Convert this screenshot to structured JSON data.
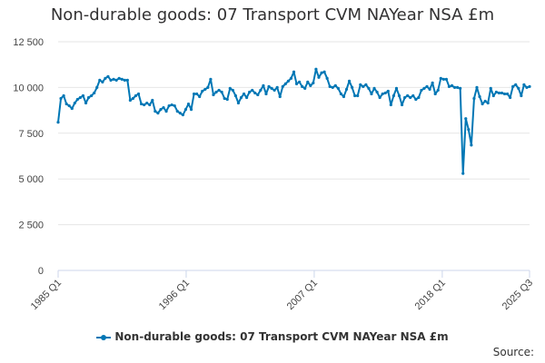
{
  "title": "Non-durable goods: 07 Transport CVM NAYear NSA £m",
  "source_label": "Source:",
  "colors": {
    "series": "#0077b5",
    "grid": "#e6e6e6",
    "axis": "#ccd6eb"
  },
  "chart_data": {
    "type": "line",
    "title": "Non-durable goods: 07 Transport CVM NAYear NSA £m",
    "xlabel": "",
    "ylabel": "",
    "ylim": [
      0,
      12500
    ],
    "yticks": [
      0,
      2500,
      5000,
      7500,
      10000,
      12500
    ],
    "ytick_labels": [
      "0",
      "2 500",
      "5 000",
      "7 500",
      "10 000",
      "12 500"
    ],
    "xticks": [
      "1985 Q1",
      "1996 Q1",
      "2007 Q1",
      "2018 Q1",
      "2025 Q3"
    ],
    "x_start": "1985 Q1",
    "x_end": "2025 Q3",
    "grid": true,
    "legend_position": "bottom",
    "series": [
      {
        "name": "Non-durable goods: 07 Transport CVM NAYear NSA £m",
        "frequency": "quarterly",
        "values": [
          8100,
          9400,
          9550,
          9100,
          9000,
          8850,
          9150,
          9350,
          9450,
          9550,
          9150,
          9450,
          9550,
          9700,
          10000,
          10400,
          10300,
          10500,
          10600,
          10400,
          10450,
          10400,
          10500,
          10450,
          10400,
          10400,
          9300,
          9400,
          9550,
          9650,
          9100,
          9050,
          9150,
          9050,
          9300,
          8700,
          8600,
          8800,
          8900,
          8700,
          9000,
          9050,
          9000,
          8700,
          8600,
          8500,
          8800,
          9100,
          8800,
          9650,
          9650,
          9500,
          9800,
          9900,
          10000,
          10450,
          9600,
          9750,
          9850,
          9750,
          9400,
          9350,
          9950,
          9850,
          9550,
          9150,
          9450,
          9650,
          9450,
          9750,
          9850,
          9700,
          9600,
          9850,
          10100,
          9650,
          10050,
          9950,
          9850,
          10000,
          9500,
          10050,
          10200,
          10350,
          10500,
          10850,
          10200,
          10300,
          10050,
          9950,
          10300,
          10100,
          10250,
          11000,
          10550,
          10800,
          10850,
          10500,
          10050,
          10000,
          10100,
          9950,
          9650,
          9500,
          9900,
          10350,
          10000,
          9550,
          9550,
          10150,
          10050,
          10150,
          9950,
          9650,
          9950,
          9750,
          9450,
          9650,
          9700,
          9800,
          9050,
          9550,
          9950,
          9550,
          9050,
          9450,
          9550,
          9450,
          9550,
          9350,
          9450,
          9850,
          9950,
          10050,
          9900,
          10250,
          9650,
          9850,
          10500,
          10450,
          10450,
          10050,
          10100,
          10000,
          10000,
          9950,
          5300,
          8300,
          7700,
          6850,
          9400,
          10000,
          9500,
          9100,
          9250,
          9150,
          9950,
          9550,
          9750,
          9700,
          9700,
          9650,
          9650,
          9450,
          10050,
          10150,
          9950,
          9550,
          10150,
          10000,
          10050
        ]
      }
    ]
  }
}
